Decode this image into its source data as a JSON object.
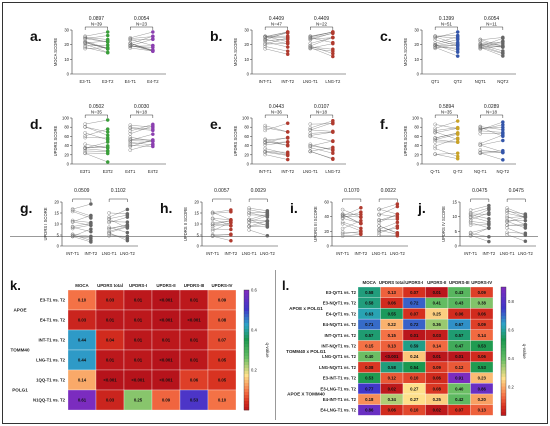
{
  "scatter_panels": [
    {
      "id": "a",
      "label": "a.",
      "ylabel": "MOCA SCORE",
      "yticks": [
        "30",
        "20",
        "10",
        "0"
      ],
      "xticks": [
        "E3-T1",
        "E3-T2",
        "E4-T1",
        "E4-T2"
      ],
      "groups": [
        {
          "color": "#3a9e3a",
          "pval": "0.0897",
          "n": "N=39"
        },
        {
          "color": "#8b3fb0",
          "pval": "0.0054",
          "n": "N=23"
        }
      ]
    },
    {
      "id": "b",
      "label": "b.",
      "ylabel": "MOCA SCORE",
      "yticks": [
        "30",
        "20",
        "10",
        "0"
      ],
      "xticks": [
        "INT-T1",
        "INT-T2",
        "LNG-T1",
        "LNG-T2"
      ],
      "groups": [
        {
          "color": "#b03a2e",
          "pval": "0.4409",
          "n": "N=47"
        },
        {
          "color": "#b03a2e",
          "pval": "0.4409",
          "n": "N=22"
        }
      ]
    },
    {
      "id": "c",
      "label": "c.",
      "ylabel": "MOCA SCORE",
      "yticks": [
        "30",
        "20",
        "10",
        "0"
      ],
      "xticks": [
        "QT1",
        "QT2",
        "NQT1",
        "NQT2"
      ],
      "groups": [
        {
          "color": "#3355aa",
          "pval": "0.1399",
          "n": "N=51"
        },
        {
          "color": "#666666",
          "pval": "0.6054",
          "n": "N=11"
        }
      ]
    },
    {
      "id": "d",
      "label": "d.",
      "ylabel": "UPDRS SCORE",
      "yticks": [
        "100",
        "80",
        "60",
        "40",
        "20",
        "0"
      ],
      "xticks": [
        "E3T1",
        "E3T2",
        "E4T1",
        "E4T2"
      ],
      "groups": [
        {
          "color": "#3a9e3a",
          "pval": "0.0502",
          "n": "N=35"
        },
        {
          "color": "#8b3fb0",
          "pval": "0.0030",
          "n": "N=18"
        }
      ]
    },
    {
      "id": "e",
      "label": "e.",
      "ylabel": "UPDRS SCORE",
      "yticks": [
        "100",
        "80",
        "60",
        "40",
        "20",
        "0"
      ],
      "xticks": [
        "INT-T1",
        "INT-T2",
        "LNG-T1",
        "LNG-T2"
      ],
      "groups": [
        {
          "color": "#b03a2e",
          "pval": "0.0443",
          "n": "N=36"
        },
        {
          "color": "#b03a2e",
          "pval": "0.0107",
          "n": "N=18"
        }
      ]
    },
    {
      "id": "f",
      "label": "f.",
      "ylabel": "UPDRS SCORE",
      "yticks": [
        "100",
        "80",
        "60",
        "40",
        "20",
        "0"
      ],
      "xticks": [
        "Q-T1",
        "Q-T2",
        "NQ-T1",
        "NQ-T2"
      ],
      "groups": [
        {
          "color": "#c9a227",
          "pval": "0.5894",
          "n": "N=35"
        },
        {
          "color": "#3355aa",
          "pval": "0.0289",
          "n": "N=18"
        }
      ]
    },
    {
      "id": "g",
      "label": "g.",
      "ylabel": "UPDRS I SCORE",
      "yticks": [
        "20",
        "15",
        "10",
        "5",
        "0"
      ],
      "xticks": [
        "INT-T1",
        "INT-T2",
        "LNG-T1",
        "LNG-T2"
      ],
      "groups": [
        {
          "color": "#666666",
          "pval": "0.0509",
          "n": ""
        },
        {
          "color": "#666666",
          "pval": "0.1102",
          "n": ""
        }
      ]
    },
    {
      "id": "h",
      "label": "h.",
      "ylabel": "UPDRS II SCORE",
      "yticks": [
        "20",
        "15",
        "10",
        "5",
        "0"
      ],
      "xticks": [
        "INT-T1",
        "INT-T2",
        "LNG-T1",
        "LNG-T2"
      ],
      "groups": [
        {
          "color": "#b03a2e",
          "pval": "0.0057",
          "n": ""
        },
        {
          "color": "#666666",
          "pval": "0.0029",
          "n": ""
        }
      ]
    },
    {
      "id": "i",
      "label": "i.",
      "ylabel": "UPDRS III SCORE",
      "yticks": [
        "60",
        "40",
        "20",
        "0"
      ],
      "xticks": [
        "INT-T1",
        "INT-T2",
        "LNG-T1",
        "LNG-T2"
      ],
      "groups": [
        {
          "color": "#b03a2e",
          "pval": "0.1070",
          "n": ""
        },
        {
          "color": "#b03a2e",
          "pval": "0.0022",
          "n": ""
        }
      ]
    },
    {
      "id": "j",
      "label": "j.",
      "ylabel": "UPDRS IV SCORE",
      "yticks": [
        "15",
        "10",
        "5",
        "0"
      ],
      "xticks": [
        "INT-T1",
        "INT-T2",
        "LNG-T1",
        "LNG-T2"
      ],
      "groups": [
        {
          "color": "#666666",
          "pval": "0.0475",
          "n": ""
        },
        {
          "color": "#666666",
          "pval": "0.0475",
          "n": ""
        }
      ]
    }
  ],
  "chart_data": [
    {
      "type": "heatmap",
      "label": "k.",
      "columns": [
        "MOCA",
        "UPDRS total",
        "UPDRS-I",
        "UPDRS-II",
        "UPDRS-III",
        "UPDRS-IV"
      ],
      "rows": [
        "E3-T1 vs. T2",
        "E4-T1 vs. T2",
        "INT-T1 vs. T2",
        "LNG-T1 vs. T2",
        "1QQ-T1 vs. T2",
        "N1QQ-T1 vs. T2"
      ],
      "row_groups": [
        {
          "label": "APOE",
          "rows": [
            0,
            1
          ]
        },
        {
          "label": "TOMM40",
          "rows": [
            2,
            3
          ]
        },
        {
          "label": "POLG1",
          "rows": [
            4,
            5
          ]
        }
      ],
      "values": [
        [
          0.1,
          0.03,
          0.01,
          0.001,
          0.01,
          0.09
        ],
        [
          0.03,
          0.01,
          0.01,
          0.001,
          0.001,
          0.08
        ],
        [
          0.44,
          0.04,
          0.01,
          0.01,
          0.01,
          0.07
        ],
        [
          0.44,
          0.01,
          0.01,
          0.001,
          0.01,
          0.05
        ],
        [
          0.14,
          0.001,
          0.001,
          0.001,
          0.06,
          0.05
        ],
        [
          0.61,
          0.03,
          0.25,
          0.09,
          0.53,
          0.1
        ]
      ],
      "cell_text": [
        [
          "0.10",
          "0.03",
          "0.01",
          "<0.001",
          "0.01",
          "0.09"
        ],
        [
          "0.03",
          "0.01",
          "0.01",
          "<0.001",
          "<0.001",
          "0.08"
        ],
        [
          "0.44",
          "0.04",
          "0.01",
          "0.01",
          "0.01",
          "0.07"
        ],
        [
          "0.44",
          "0.01",
          "0.01",
          "<0.001",
          "0.01",
          "0.05"
        ],
        [
          "0.14",
          "<0.001",
          "<0.001",
          "<0.001",
          "0.06",
          "0.05"
        ],
        [
          "0.61",
          "0.03",
          "0.25",
          "0.09",
          "0.53",
          "0.10"
        ]
      ],
      "colorbar": {
        "label": "q-value",
        "ticks": [
          "0.6",
          "0.4",
          "0.2"
        ],
        "range": [
          0,
          0.6
        ]
      }
    },
    {
      "type": "heatmap",
      "label": "l.",
      "columns": [
        "MOCA",
        "UPDRS total",
        "UPDRS-I",
        "UPDRS-II",
        "UPDRS-III",
        "UPDRS-IV"
      ],
      "rows": [
        "E3-QrT1 vs. T2",
        "E3-NQrT1 vs. T2",
        "E4-QrT1 vs. T2",
        "E4-NQrT1 vs. T2",
        "INT-QrT1 vs. T2",
        "INT-NQrT1 vs. T2",
        "LNG-QrT1 vs. T2",
        "LNG-NQrT1 vs. T2",
        "E3-INT-T1 vs. T2",
        "E3-LNG-T1 vs. T2",
        "E4-INT-T1 vs. T2",
        "E4-LNG-T1 vs. T2"
      ],
      "row_groups": [
        {
          "label": "APOE x POLG1",
          "rows": [
            0,
            3
          ]
        },
        {
          "label": "TOMM40 x POLG1",
          "rows": [
            4,
            7
          ]
        },
        {
          "label": "APOE X TOMM40",
          "rows": [
            8,
            11
          ]
        }
      ],
      "values": [
        [
          0.58,
          0.13,
          0.07,
          0.01,
          0.43,
          0.09
        ],
        [
          0.58,
          0.06,
          0.72,
          0.41,
          0.43,
          0.38
        ],
        [
          0.63,
          0.55,
          0.07,
          0.25,
          0.06,
          0.06
        ],
        [
          0.71,
          0.22,
          0.72,
          0.36,
          0.67,
          0.09
        ],
        [
          0.57,
          0.15,
          0.01,
          0.03,
          0.57,
          0.14
        ],
        [
          0.15,
          0.13,
          0.59,
          0.14,
          0.47,
          0.53
        ],
        [
          0.4,
          0.001,
          0.24,
          0.01,
          0.01,
          0.06
        ],
        [
          0.08,
          0.58,
          0.54,
          0.09,
          0.12,
          0.53
        ],
        [
          0.53,
          0.12,
          0.1,
          0.06,
          0.91,
          0.23
        ],
        [
          0.77,
          0.02,
          0.27,
          0.08,
          0.4,
          0.86
        ],
        [
          0.18,
          0.34,
          0.27,
          0.25,
          0.42,
          0.2
        ],
        [
          0.86,
          0.06,
          0.1,
          0.02,
          0.07,
          0.13
        ]
      ],
      "cell_text": [
        [
          "0.58",
          "0.13",
          "0.07",
          "0.01",
          "0.43",
          "0.09"
        ],
        [
          "0.58",
          "0.06",
          "0.72",
          "0.41",
          "0.43",
          "0.38"
        ],
        [
          "0.63",
          "0.55",
          "0.07",
          "0.25",
          "0.06",
          "0.06"
        ],
        [
          "0.71",
          "0.22",
          "0.72",
          "0.36",
          "0.67",
          "0.09"
        ],
        [
          "0.57",
          "0.15",
          "0.01",
          "0.03",
          "0.57",
          "0.14"
        ],
        [
          "0.15",
          "0.13",
          "0.59",
          "0.14",
          "0.47",
          "0.53"
        ],
        [
          "0.40",
          "<0.001",
          "0.24",
          "0.01",
          "0.01",
          "0.06"
        ],
        [
          "0.08",
          "0.58",
          "0.54",
          "0.09",
          "0.12",
          "0.53"
        ],
        [
          "0.53",
          "0.12",
          "0.10",
          "0.06",
          "0.91",
          "0.23"
        ],
        [
          "0.77",
          "0.02",
          "0.27",
          "0.08",
          "0.40",
          "0.86"
        ],
        [
          "0.18",
          "0.34",
          "0.27",
          "0.25",
          "0.42",
          "0.20"
        ],
        [
          "0.86",
          "0.06",
          "0.10",
          "0.02",
          "0.07",
          "0.13"
        ]
      ],
      "colorbar": {
        "label": "q-value",
        "ticks": [
          "0.8",
          "0.6",
          "0.4",
          "0.2"
        ],
        "range": [
          0,
          0.9
        ]
      }
    }
  ]
}
